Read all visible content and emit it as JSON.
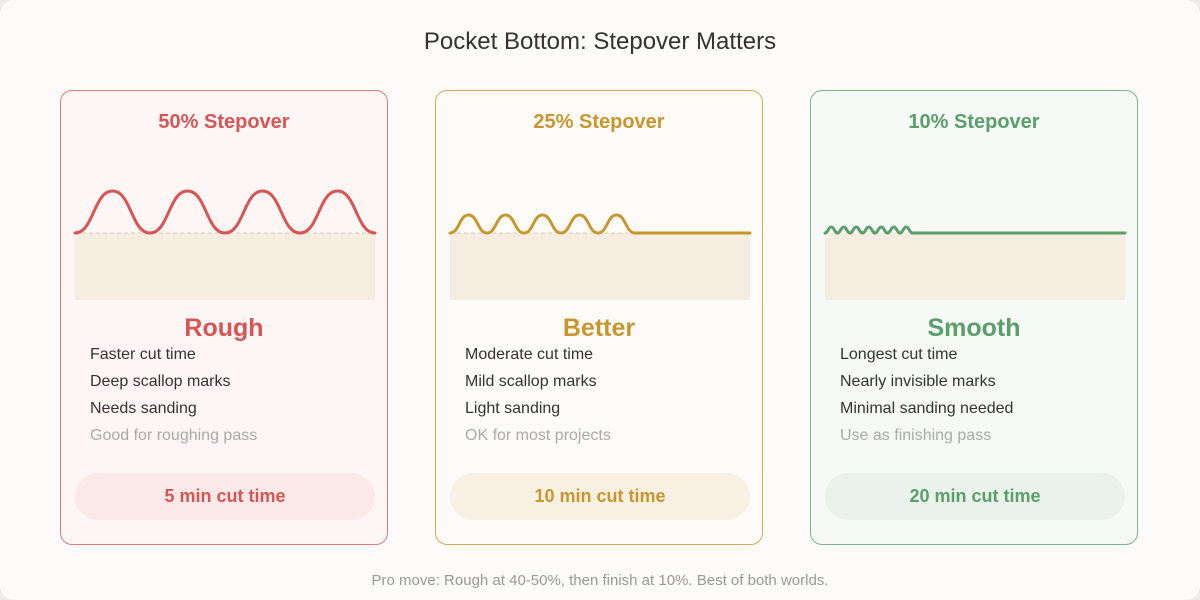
{
  "title": "Pocket Bottom: Stepover Matters",
  "cards": [
    {
      "heading": "50% Stepover",
      "verdict": "Rough",
      "items": [
        "Faster cut time",
        "Deep scallop marks",
        "Needs sanding"
      ],
      "note": "Good for roughing pass",
      "time": "5 min cut time"
    },
    {
      "heading": "25% Stepover",
      "verdict": "Better",
      "items": [
        "Moderate cut time",
        "Mild scallop marks",
        "Light sanding"
      ],
      "note": "OK for most projects",
      "time": "10 min cut time"
    },
    {
      "heading": "10% Stepover",
      "verdict": "Smooth",
      "items": [
        "Longest cut time",
        "Nearly invisible marks",
        "Minimal sanding needed"
      ],
      "note": "Use as finishing pass",
      "time": "20 min cut time"
    }
  ],
  "footer": "Pro move: Rough at 40-50%, then finish at 10%. Best of both worlds."
}
